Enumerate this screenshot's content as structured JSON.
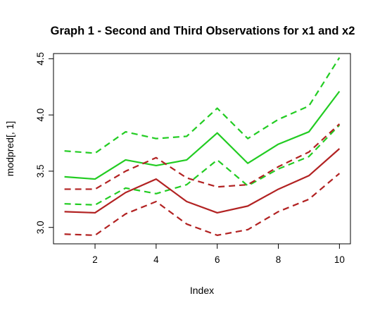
{
  "chart_data": {
    "type": "line",
    "title": "Graph 1 - Second and Third Observations for x1 and x2",
    "xlabel": "Index",
    "ylabel": "modpred[, 1]",
    "x": [
      1,
      2,
      3,
      4,
      5,
      6,
      7,
      8,
      9,
      10
    ],
    "xlim": [
      0.64,
      10.36
    ],
    "ylim": [
      2.854,
      4.546
    ],
    "xticks": [
      2,
      4,
      6,
      8,
      10
    ],
    "yticks": [
      3.0,
      3.5,
      4.0,
      4.5
    ],
    "xtick_labels": [
      "2",
      "4",
      "6",
      "8",
      "10"
    ],
    "ytick_labels": [
      "3.0",
      "3.5",
      "4.0",
      "4.5"
    ],
    "grid": false,
    "legend": "none",
    "series": [
      {
        "color": "#22cc22",
        "style": "solid",
        "values": [
          3.45,
          3.43,
          3.6,
          3.55,
          3.6,
          3.84,
          3.57,
          3.74,
          3.85,
          4.21
        ]
      },
      {
        "color": "#22cc22",
        "style": "dashed",
        "values": [
          3.68,
          3.66,
          3.85,
          3.79,
          3.81,
          4.06,
          3.79,
          3.96,
          4.08,
          4.51
        ]
      },
      {
        "color": "#22cc22",
        "style": "dashed",
        "values": [
          3.21,
          3.2,
          3.35,
          3.3,
          3.38,
          3.6,
          3.37,
          3.52,
          3.63,
          3.91
        ]
      },
      {
        "color": "#b22222",
        "style": "solid",
        "values": [
          3.14,
          3.13,
          3.31,
          3.43,
          3.23,
          3.13,
          3.19,
          3.34,
          3.46,
          3.7
        ]
      },
      {
        "color": "#b22222",
        "style": "dashed",
        "values": [
          3.34,
          3.34,
          3.5,
          3.62,
          3.44,
          3.36,
          3.38,
          3.54,
          3.67,
          3.92
        ]
      },
      {
        "color": "#b22222",
        "style": "dashed",
        "values": [
          2.94,
          2.93,
          3.12,
          3.23,
          3.03,
          2.93,
          2.98,
          3.14,
          3.25,
          3.48
        ]
      }
    ]
  }
}
